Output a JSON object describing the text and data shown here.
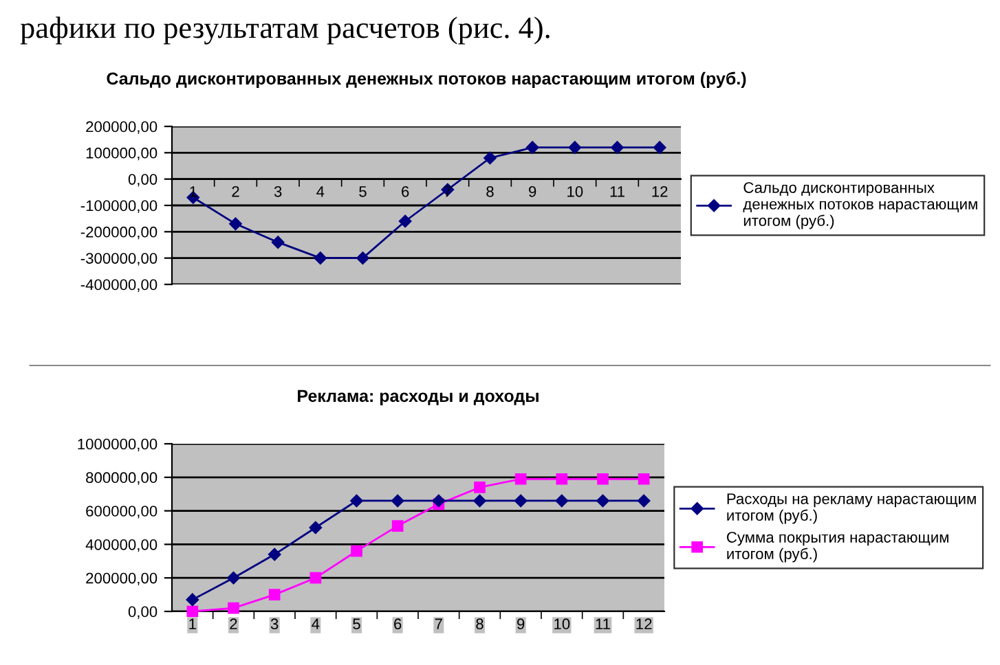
{
  "chart_data": [
    {
      "type": "line",
      "title": "Сальдо дисконтированных денежных потоков нарастающим итогом (руб.)",
      "annotations": [
        "рафики по результатам расчетов (рис. 4)."
      ],
      "categories": [
        "1",
        "2",
        "3",
        "4",
        "5",
        "6",
        "7",
        "8",
        "9",
        "10",
        "11",
        "12"
      ],
      "series": [
        {
          "name": "Сальдо дисконтированных\nденежных потоков нарастающим\nитогом (руб.)",
          "color": "#000080",
          "marker": "diamond",
          "values": [
            -70000,
            -170000,
            -240000,
            -300000,
            -300000,
            -160000,
            -40000,
            80000,
            120000,
            120000,
            120000,
            120000
          ]
        }
      ],
      "ylim": [
        -400000,
        200000
      ],
      "yticks": [
        {
          "value": -400000,
          "label": "-400000,00"
        },
        {
          "value": -300000,
          "label": "-300000,00"
        },
        {
          "value": -200000,
          "label": "-200000,00"
        },
        {
          "value": -100000,
          "label": "-100000,00"
        },
        {
          "value": 0,
          "label": "0,00"
        },
        {
          "value": 100000,
          "label": "100000,00"
        },
        {
          "value": 200000,
          "label": "200000,00"
        }
      ],
      "grid": "y",
      "legend": "right"
    },
    {
      "type": "line",
      "title": "Реклама: расходы и доходы",
      "categories": [
        "1",
        "2",
        "3",
        "4",
        "5",
        "6",
        "7",
        "8",
        "9",
        "10",
        "11",
        "12"
      ],
      "series": [
        {
          "name": "Расходы на рекламу нарастающим\nитогом (руб.)",
          "color": "#000080",
          "marker": "diamond",
          "values": [
            70000,
            200000,
            340000,
            500000,
            660000,
            660000,
            660000,
            660000,
            660000,
            660000,
            660000,
            660000
          ]
        },
        {
          "name": "Сумма покрытия нарастающим\nитогом (руб.)",
          "color": "#ff00ff",
          "marker": "square",
          "values": [
            0,
            20000,
            100000,
            200000,
            360000,
            510000,
            640000,
            740000,
            790000,
            790000,
            790000,
            790000
          ]
        }
      ],
      "ylim": [
        0,
        1000000
      ],
      "yticks": [
        {
          "value": 0,
          "label": "0,00"
        },
        {
          "value": 200000,
          "label": "200000,00"
        },
        {
          "value": 400000,
          "label": "400000,00"
        },
        {
          "value": 600000,
          "label": "600000,00"
        },
        {
          "value": 800000,
          "label": "800000,00"
        },
        {
          "value": 1000000,
          "label": "1000000,00"
        }
      ],
      "grid": "y",
      "legend": "right"
    }
  ]
}
